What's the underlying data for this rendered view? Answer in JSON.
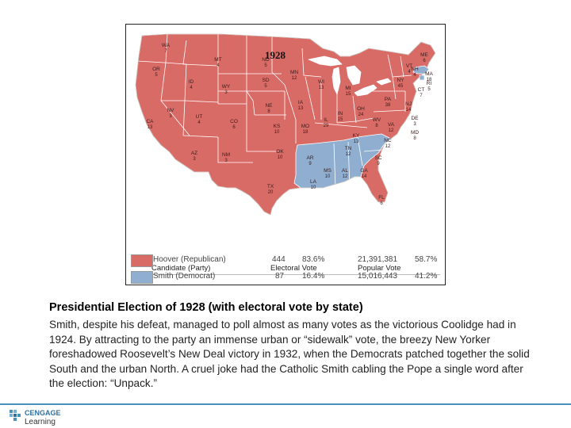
{
  "figure": {
    "year_title": "1928",
    "colors": {
      "republican": "#d96b66",
      "democrat": "#8faed0",
      "great_lakes": "#ffffff",
      "border": "#7a3030"
    },
    "states": [
      {
        "abbr": "WA",
        "ev": "7"
      },
      {
        "abbr": "OR",
        "ev": "5"
      },
      {
        "abbr": "CA",
        "ev": "13"
      },
      {
        "abbr": "ID",
        "ev": "4"
      },
      {
        "abbr": "NV",
        "ev": "3"
      },
      {
        "abbr": "MT",
        "ev": "4"
      },
      {
        "abbr": "WY",
        "ev": "3"
      },
      {
        "abbr": "UT",
        "ev": "4"
      },
      {
        "abbr": "AZ",
        "ev": "3"
      },
      {
        "abbr": "CO",
        "ev": "6"
      },
      {
        "abbr": "NM",
        "ev": "3"
      },
      {
        "abbr": "ND",
        "ev": "5"
      },
      {
        "abbr": "SD",
        "ev": "5"
      },
      {
        "abbr": "NE",
        "ev": "8"
      },
      {
        "abbr": "KS",
        "ev": "10"
      },
      {
        "abbr": "OK",
        "ev": "10"
      },
      {
        "abbr": "TX",
        "ev": "20"
      },
      {
        "abbr": "MN",
        "ev": "12"
      },
      {
        "abbr": "IA",
        "ev": "13"
      },
      {
        "abbr": "MO",
        "ev": "18"
      },
      {
        "abbr": "AR",
        "ev": "9"
      },
      {
        "abbr": "LA",
        "ev": "10"
      },
      {
        "abbr": "WI",
        "ev": "13"
      },
      {
        "abbr": "IL",
        "ev": "29"
      },
      {
        "abbr": "MI",
        "ev": "15"
      },
      {
        "abbr": "IN",
        "ev": "15"
      },
      {
        "abbr": "OH",
        "ev": "24"
      },
      {
        "abbr": "KY",
        "ev": "13"
      },
      {
        "abbr": "TN",
        "ev": "12"
      },
      {
        "abbr": "MS",
        "ev": "10"
      },
      {
        "abbr": "AL",
        "ev": "12"
      },
      {
        "abbr": "GA",
        "ev": "14"
      },
      {
        "abbr": "FL",
        "ev": "6"
      },
      {
        "abbr": "SC",
        "ev": "9"
      },
      {
        "abbr": "NC",
        "ev": "12"
      },
      {
        "abbr": "VA",
        "ev": "12"
      },
      {
        "abbr": "WV",
        "ev": "8"
      },
      {
        "abbr": "PA",
        "ev": "38"
      },
      {
        "abbr": "NY",
        "ev": "45"
      },
      {
        "abbr": "NJ",
        "ev": "14"
      },
      {
        "abbr": "DE",
        "ev": "3"
      },
      {
        "abbr": "MD",
        "ev": "8"
      },
      {
        "abbr": "VT",
        "ev": "4"
      },
      {
        "abbr": "NH",
        "ev": "4"
      },
      {
        "abbr": "ME",
        "ev": "6"
      },
      {
        "abbr": "MA",
        "ev": "18"
      },
      {
        "abbr": "RI",
        "ev": "5"
      },
      {
        "abbr": "CT",
        "ev": "7"
      }
    ],
    "legend": {
      "headers": {
        "candidate": "Candidate (Party)",
        "electoral": "Electoral Vote",
        "popular": "Popular Vote"
      },
      "rows": [
        {
          "candidate": "Hoover (Republican)",
          "ev": "444",
          "ev_pct": "83.6%",
          "pv": "21,391,381",
          "pv_pct": "58.7%"
        },
        {
          "candidate": "Smith (Democrat)",
          "ev": "87",
          "ev_pct": "16.4%",
          "pv": "15,016,443",
          "pv_pct": "41.2%"
        }
      ]
    }
  },
  "caption": {
    "title": "Presidential Election of 1928 (with electoral vote by state)",
    "body": "Smith, despite his defeat, managed to poll almost as many votes as the victorious Coolidge had in 1924. By attracting to the party an immense urban or “sidewalk” vote, the breezy New Yorker foreshadowed Roosevelt’s New Deal victory in 1932, when the Democrats patched together the solid South and the urban North. A cruel joke had the Catholic Smith cabling the Pope a single word after the election: “Unpack.”"
  },
  "footer": {
    "logo_top": "CENGAGE",
    "logo_bottom": "Learning",
    "brand_color": "#2f6f9f"
  }
}
